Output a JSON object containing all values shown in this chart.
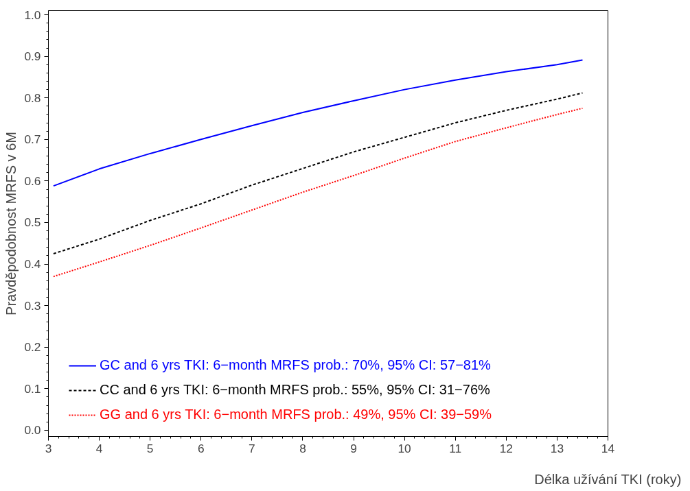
{
  "chart_data": {
    "type": "line",
    "xlabel": "Délka užívání TKI (roky)",
    "ylabel": "Pravděpodobnost MRFS v 6M",
    "x": [
      3.1,
      4,
      5,
      6,
      7,
      8,
      9,
      10,
      11,
      12,
      13,
      13.5
    ],
    "series": [
      {
        "name": "GC and 6 yrs TKI: 6−month MRFS prob.: 70%, 95% CI: 57−81%",
        "color": "#0000ff",
        "line_style": "solid",
        "values": [
          0.588,
          0.629,
          0.666,
          0.7,
          0.733,
          0.765,
          0.793,
          0.82,
          0.843,
          0.863,
          0.88,
          0.891
        ]
      },
      {
        "name": "CC and 6 yrs TKI: 6−month MRFS prob.: 55%, 95% CI: 31−76%",
        "color": "#000000",
        "line_style": "dashed",
        "values": [
          0.425,
          0.46,
          0.505,
          0.545,
          0.59,
          0.63,
          0.67,
          0.705,
          0.74,
          0.77,
          0.797,
          0.812
        ]
      },
      {
        "name": "GG and 6 yrs TKI: 6−month MRFS prob.: 49%, 95% CI: 39−59%",
        "color": "#ff0000",
        "line_style": "dotted",
        "values": [
          0.37,
          0.405,
          0.445,
          0.487,
          0.53,
          0.573,
          0.613,
          0.655,
          0.695,
          0.728,
          0.76,
          0.775
        ]
      }
    ],
    "xlim": [
      3,
      14
    ],
    "ylim": [
      -0.015,
      1.01
    ],
    "xticks": [
      3,
      4,
      5,
      6,
      7,
      8,
      9,
      10,
      11,
      12,
      13,
      14
    ],
    "yticks": [
      {
        "value": 0,
        "label": "0.0"
      },
      {
        "value": 0.1,
        "label": "0.1"
      },
      {
        "value": 0.2,
        "label": "0.2"
      },
      {
        "value": 0.3,
        "label": "0.3"
      },
      {
        "value": 0.4,
        "label": "0.4"
      },
      {
        "value": 0.5,
        "label": "0.5"
      },
      {
        "value": 0.6,
        "label": "0.6"
      },
      {
        "value": 0.7,
        "label": "0.7"
      },
      {
        "value": 0.8,
        "label": "0.8"
      },
      {
        "value": 0.9,
        "label": "0.9"
      },
      {
        "value": 1.0,
        "label": "1.0"
      }
    ],
    "grid": false,
    "legend": "bottom",
    "marker": "none"
  }
}
